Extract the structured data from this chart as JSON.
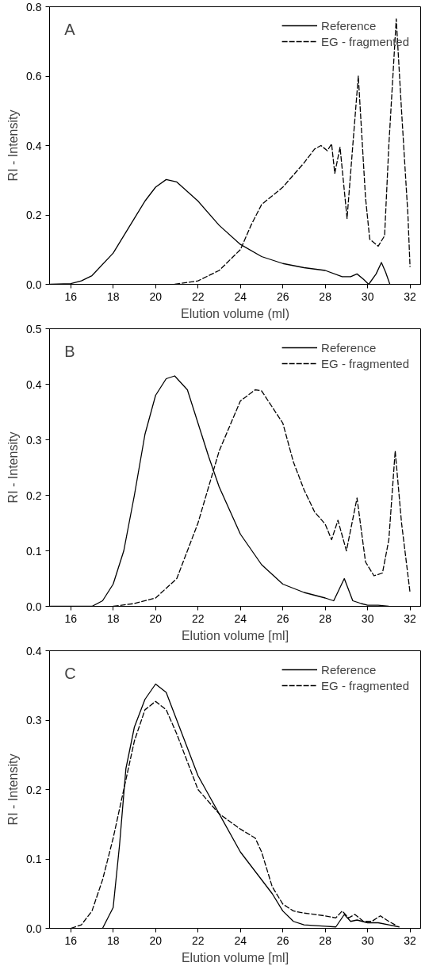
{
  "chart_data": [
    {
      "type": "line",
      "xlabel": "Elution volume (ml)",
      "ylabel": "RI - Intensity",
      "annotations": [
        "A"
      ],
      "legend": "top right",
      "grid": false,
      "xlim": [
        15,
        32.5
      ],
      "xticks": [
        16,
        18,
        20,
        22,
        24,
        26,
        28,
        30,
        32
      ],
      "ylim": [
        0,
        0.8
      ],
      "yticks": [
        {
          "value": 0,
          "label": "0.0"
        },
        {
          "value": 0.2,
          "label": "0.2"
        },
        {
          "value": 0.4,
          "label": "0.4"
        },
        {
          "value": 0.6,
          "label": "0.6"
        },
        {
          "value": 0.8,
          "label": "0.8"
        }
      ],
      "series": [
        {
          "name": "Reference",
          "color": "#000000",
          "line_style": "solid",
          "x": [
            15,
            16,
            16.5,
            17,
            18,
            19,
            19.5,
            20,
            20.5,
            21,
            22,
            23,
            24,
            25,
            26,
            27,
            28,
            28.8,
            29.2,
            29.5,
            29.8,
            30.05,
            30.4,
            30.65,
            30.85,
            31.05
          ],
          "values": [
            0,
            0.002,
            0.01,
            0.025,
            0.09,
            0.19,
            0.24,
            0.28,
            0.302,
            0.295,
            0.24,
            0.17,
            0.115,
            0.08,
            0.06,
            0.048,
            0.04,
            0.022,
            0.022,
            0.03,
            0.015,
            0,
            0.03,
            0.063,
            0.035,
            0
          ]
        },
        {
          "name": "EG - fragmented",
          "color": "#000000",
          "line_style": "dashed",
          "x": [
            20.9,
            22,
            23,
            24,
            24.5,
            25,
            26,
            27,
            27.5,
            27.8,
            28.1,
            28.3,
            28.45,
            28.7,
            29.03,
            29.3,
            29.56,
            29.9,
            30.1,
            30.5,
            30.8,
            31.0,
            31.35,
            31.6,
            31.9,
            32.0
          ],
          "values": [
            0,
            0.01,
            0.04,
            0.1,
            0.17,
            0.23,
            0.28,
            0.35,
            0.39,
            0.4,
            0.385,
            0.405,
            0.32,
            0.395,
            0.19,
            0.4,
            0.6,
            0.25,
            0.13,
            0.11,
            0.14,
            0.4,
            0.765,
            0.5,
            0.2,
            0.05
          ]
        }
      ]
    },
    {
      "type": "line",
      "xlabel": "Elution volume [ml]",
      "ylabel": "RI - Intensity",
      "annotations": [
        "B"
      ],
      "legend": "top right",
      "grid": false,
      "xlim": [
        15,
        32.5
      ],
      "xticks": [
        16,
        18,
        20,
        22,
        24,
        26,
        28,
        30,
        32
      ],
      "ylim": [
        0,
        0.5
      ],
      "yticks": [
        {
          "value": 0,
          "label": "0.0"
        },
        {
          "value": 0.1,
          "label": "0.1"
        },
        {
          "value": 0.2,
          "label": "0.2"
        },
        {
          "value": 0.3,
          "label": "0.3"
        },
        {
          "value": 0.4,
          "label": "0.4"
        },
        {
          "value": 0.5,
          "label": "0.5"
        }
      ],
      "series": [
        {
          "name": "Reference",
          "color": "#000000",
          "line_style": "solid",
          "x": [
            15,
            17,
            17.5,
            18,
            18.5,
            19,
            19.5,
            20,
            20.5,
            20.9,
            21.5,
            22,
            22.5,
            23,
            24,
            25,
            26,
            27,
            28,
            28.4,
            28.9,
            29.3,
            29.7,
            30,
            30.5,
            31
          ],
          "values": [
            0,
            0,
            0.01,
            0.04,
            0.1,
            0.2,
            0.31,
            0.38,
            0.41,
            0.415,
            0.39,
            0.33,
            0.27,
            0.215,
            0.13,
            0.075,
            0.04,
            0.025,
            0.015,
            0.01,
            0.05,
            0.01,
            0.005,
            0.002,
            0.002,
            0
          ]
        },
        {
          "name": "EG - fragmented",
          "color": "#000000",
          "line_style": "dashed",
          "x": [
            18,
            19,
            20,
            21,
            22,
            23,
            24,
            24.7,
            25,
            26,
            26.5,
            27,
            27.5,
            28,
            28.3,
            28.6,
            29.0,
            29.5,
            29.9,
            30.3,
            30.7,
            31.0,
            31.3,
            31.6,
            32
          ],
          "values": [
            0,
            0.005,
            0.015,
            0.05,
            0.15,
            0.28,
            0.37,
            0.39,
            0.388,
            0.33,
            0.26,
            0.21,
            0.17,
            0.148,
            0.12,
            0.155,
            0.1,
            0.195,
            0.08,
            0.055,
            0.06,
            0.12,
            0.28,
            0.15,
            0.025
          ]
        }
      ]
    },
    {
      "type": "line",
      "xlabel": "Elution volume [ml]",
      "ylabel": "RI - Intensity",
      "annotations": [
        "C"
      ],
      "legend": "top right",
      "grid": false,
      "xlim": [
        15,
        32.5
      ],
      "xticks": [
        16,
        18,
        20,
        22,
        24,
        26,
        28,
        30,
        32
      ],
      "ylim": [
        0,
        0.4
      ],
      "yticks": [
        {
          "value": 0,
          "label": "0.0"
        },
        {
          "value": 0.1,
          "label": "0.1"
        },
        {
          "value": 0.2,
          "label": "0.2"
        },
        {
          "value": 0.3,
          "label": "0.3"
        },
        {
          "value": 0.4,
          "label": "0.4"
        }
      ],
      "series": [
        {
          "name": "Reference",
          "color": "#000000",
          "line_style": "solid",
          "x": [
            17.5,
            18,
            18.3,
            18.6,
            19,
            19.5,
            20,
            20.5,
            21,
            22,
            23,
            24,
            25,
            25.5,
            26,
            26.5,
            27,
            28,
            28.5,
            28.9,
            29.2,
            29.5,
            30,
            30.5,
            31,
            31.5
          ],
          "values": [
            0,
            0.03,
            0.12,
            0.23,
            0.29,
            0.33,
            0.352,
            0.34,
            0.3,
            0.22,
            0.165,
            0.11,
            0.07,
            0.05,
            0.025,
            0.01,
            0.005,
            0.003,
            0.002,
            0.02,
            0.01,
            0.012,
            0.008,
            0.008,
            0.005,
            0.002
          ]
        },
        {
          "name": "EG - fragmented",
          "color": "#000000",
          "line_style": "dashed",
          "x": [
            16,
            16.5,
            17,
            17.5,
            18,
            18.5,
            19,
            19.5,
            20,
            20.5,
            21,
            22,
            23,
            24,
            24.7,
            25,
            25.5,
            26,
            26.5,
            27,
            28,
            28.5,
            28.8,
            29.1,
            29.4,
            29.8,
            30.2,
            30.6,
            31.0,
            31.3
          ],
          "values": [
            0,
            0.005,
            0.025,
            0.07,
            0.13,
            0.2,
            0.27,
            0.315,
            0.327,
            0.315,
            0.28,
            0.2,
            0.165,
            0.143,
            0.13,
            0.11,
            0.06,
            0.035,
            0.025,
            0.022,
            0.018,
            0.015,
            0.025,
            0.015,
            0.02,
            0.01,
            0.01,
            0.018,
            0.01,
            0.005
          ]
        }
      ]
    }
  ]
}
